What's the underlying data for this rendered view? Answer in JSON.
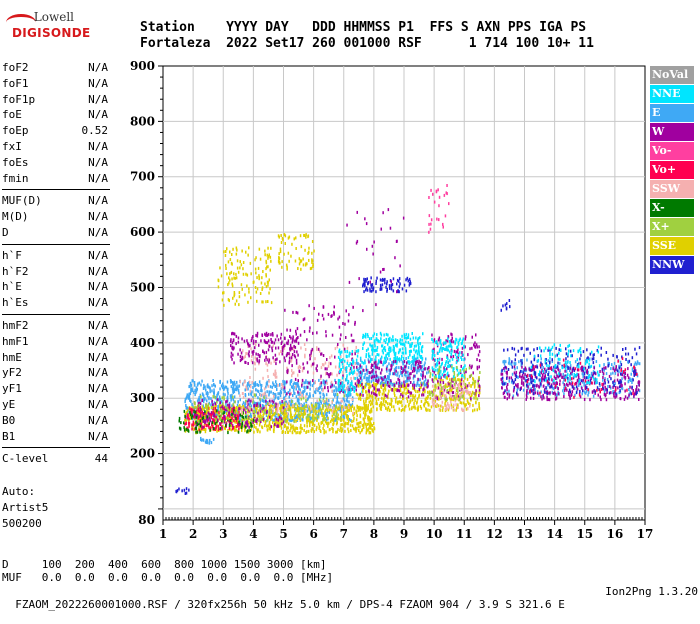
{
  "logo": {
    "line1": "Lowell",
    "line2": "DIGISONDE"
  },
  "header": {
    "line1": "Station    YYYY DAY   DDD HHMMSS P1  FFS S AXN PPS IGA PS",
    "line2": "Fortaleza  2022 Set17 260 001000 RSF      1 714 100 10+ 11"
  },
  "params": [
    [
      {
        "n": "foF2",
        "v": "N/A"
      },
      {
        "n": "foF1",
        "v": "N/A"
      },
      {
        "n": "foF1p",
        "v": "N/A"
      },
      {
        "n": "foE",
        "v": "N/A"
      },
      {
        "n": "foEp",
        "v": "0.52"
      },
      {
        "n": "fxI",
        "v": "N/A"
      },
      {
        "n": "foEs",
        "v": "N/A"
      },
      {
        "n": "fmin",
        "v": "N/A"
      }
    ],
    [
      {
        "n": "MUF(D)",
        "v": "N/A"
      },
      {
        "n": "M(D)",
        "v": "N/A"
      },
      {
        "n": "D",
        "v": "N/A"
      }
    ],
    [
      {
        "n": "h`F",
        "v": "N/A"
      },
      {
        "n": "h`F2",
        "v": "N/A"
      },
      {
        "n": "h`E",
        "v": "N/A"
      },
      {
        "n": "h`Es",
        "v": "N/A"
      }
    ],
    [
      {
        "n": "hmF2",
        "v": "N/A"
      },
      {
        "n": "hmF1",
        "v": "N/A"
      },
      {
        "n": "hmE",
        "v": "N/A"
      },
      {
        "n": "yF2",
        "v": "N/A"
      },
      {
        "n": "yF1",
        "v": "N/A"
      },
      {
        "n": "yE",
        "v": "N/A"
      },
      {
        "n": "B0",
        "v": "N/A"
      },
      {
        "n": "B1",
        "v": "N/A"
      }
    ],
    [
      {
        "n": "C-level",
        "v": "44"
      }
    ]
  ],
  "auto": {
    "l1": "Auto:",
    "l2": "Artist5",
    "l3": "500200"
  },
  "footer": {
    "line1": "D     100  200  400  600  800 1000 1500 3000 [km]",
    "line2": "MUF   0.0  0.0  0.0  0.0  0.0  0.0  0.0  0.0 [MHz]",
    "line3": "FZAOM_2022260001000.RSF / 320fx256h 50 kHz 5.0 km / DPS-4 FZAOM 904 / 3.9 S 321.6 E",
    "version": "Ion2Png 1.3.20"
  },
  "legend": [
    {
      "label": "NoVal",
      "color": "#a0a0a0"
    },
    {
      "label": "NNE",
      "color": "#00e5ff"
    },
    {
      "label": "E",
      "color": "#3fa9f5"
    },
    {
      "label": "W",
      "color": "#a0009f"
    },
    {
      "label": "Vo-",
      "color": "#ff3fa0"
    },
    {
      "label": "Vo+",
      "color": "#ff0050"
    },
    {
      "label": "SSW",
      "color": "#f5b0b0"
    },
    {
      "label": "X-",
      "color": "#007a00"
    },
    {
      "label": "X+",
      "color": "#a0d040"
    },
    {
      "label": "SSE",
      "color": "#e0d000"
    },
    {
      "label": "NNW",
      "color": "#2020d0"
    }
  ],
  "chart_data": {
    "type": "scatter",
    "xlim": [
      1,
      17
    ],
    "ylim": [
      80,
      900
    ],
    "xticks": [
      "1",
      "2",
      "3",
      "4",
      "5",
      "6",
      "7",
      "8",
      "9",
      "10",
      "11",
      "12",
      "13",
      "14",
      "15",
      "16",
      "17"
    ],
    "yticks": [
      "80",
      "200",
      "300",
      "400",
      "500",
      "600",
      "700",
      "800",
      "900"
    ],
    "grid": true,
    "clusters": [
      {
        "s": "E",
        "x0": 1.7,
        "x1": 7.3,
        "y0": 262,
        "y1": 335,
        "n": 900
      },
      {
        "s": "SSE",
        "x0": 1.7,
        "x1": 8.0,
        "y0": 240,
        "y1": 290,
        "n": 800
      },
      {
        "s": "Vo+",
        "x0": 1.7,
        "x1": 3.5,
        "y0": 245,
        "y1": 285,
        "n": 150
      },
      {
        "s": "W",
        "x0": 2.0,
        "x1": 5.0,
        "y0": 250,
        "y1": 300,
        "n": 150
      },
      {
        "s": "X-",
        "x0": 1.5,
        "x1": 4.0,
        "y0": 240,
        "y1": 280,
        "n": 80
      },
      {
        "s": "X+",
        "x0": 2.0,
        "x1": 7.0,
        "y0": 260,
        "y1": 310,
        "n": 120
      },
      {
        "s": "SSW",
        "x0": 3.5,
        "x1": 7.5,
        "y0": 275,
        "y1": 400,
        "n": 220
      },
      {
        "s": "W",
        "x0": 3.2,
        "x1": 5.5,
        "y0": 365,
        "y1": 420,
        "n": 160
      },
      {
        "s": "W",
        "x0": 5.0,
        "x1": 7.4,
        "y0": 310,
        "y1": 470,
        "n": 140
      },
      {
        "s": "NNE",
        "x0": 6.8,
        "x1": 7.6,
        "y0": 310,
        "y1": 390,
        "n": 100
      },
      {
        "s": "SSE",
        "x0": 2.8,
        "x1": 4.6,
        "y0": 470,
        "y1": 575,
        "n": 130
      },
      {
        "s": "SSE",
        "x0": 4.8,
        "x1": 6.0,
        "y0": 535,
        "y1": 600,
        "n": 70
      },
      {
        "s": "SSE",
        "x0": 7.4,
        "x1": 10.0,
        "y0": 280,
        "y1": 330,
        "n": 280
      },
      {
        "s": "E",
        "x0": 7.4,
        "x1": 9.8,
        "y0": 325,
        "y1": 375,
        "n": 230
      },
      {
        "s": "NNE",
        "x0": 7.6,
        "x1": 9.6,
        "y0": 365,
        "y1": 420,
        "n": 220
      },
      {
        "s": "W",
        "x0": 7.4,
        "x1": 9.8,
        "y0": 305,
        "y1": 370,
        "n": 150
      },
      {
        "s": "NNW",
        "x0": 7.6,
        "x1": 9.2,
        "y0": 495,
        "y1": 520,
        "n": 80
      },
      {
        "s": "W",
        "x0": 7.0,
        "x1": 9.0,
        "y0": 440,
        "y1": 650,
        "n": 30
      },
      {
        "s": "SSE",
        "x0": 10.0,
        "x1": 11.5,
        "y0": 280,
        "y1": 340,
        "n": 170
      },
      {
        "s": "W",
        "x0": 9.9,
        "x1": 11.5,
        "y0": 300,
        "y1": 420,
        "n": 150
      },
      {
        "s": "NNE",
        "x0": 9.9,
        "x1": 11.0,
        "y0": 340,
        "y1": 410,
        "n": 130
      },
      {
        "s": "SSW",
        "x0": 9.9,
        "x1": 11.2,
        "y0": 280,
        "y1": 330,
        "n": 80
      },
      {
        "s": "Vo-",
        "x0": 9.8,
        "x1": 10.5,
        "y0": 600,
        "y1": 690,
        "n": 25
      },
      {
        "s": "X+",
        "x0": 9.8,
        "x1": 11.5,
        "y0": 300,
        "y1": 360,
        "n": 60
      },
      {
        "s": "E",
        "x0": 12.2,
        "x1": 16.8,
        "y0": 305,
        "y1": 375,
        "n": 300
      },
      {
        "s": "W",
        "x0": 12.2,
        "x1": 16.8,
        "y0": 300,
        "y1": 360,
        "n": 320
      },
      {
        "s": "NNW",
        "x0": 12.2,
        "x1": 16.8,
        "y0": 310,
        "y1": 395,
        "n": 200
      },
      {
        "s": "NNE",
        "x0": 13.2,
        "x1": 15.5,
        "y0": 330,
        "y1": 400,
        "n": 90
      },
      {
        "s": "Vo+",
        "x0": 13.0,
        "x1": 16.8,
        "y0": 300,
        "y1": 380,
        "n": 40
      },
      {
        "s": "NNW",
        "x0": 1.4,
        "x1": 1.9,
        "y0": 130,
        "y1": 140,
        "n": 10
      },
      {
        "s": "E",
        "x0": 2.2,
        "x1": 2.8,
        "y0": 220,
        "y1": 232,
        "n": 14
      },
      {
        "s": "NNW",
        "x0": 12.2,
        "x1": 12.5,
        "y0": 460,
        "y1": 480,
        "n": 8
      }
    ]
  }
}
